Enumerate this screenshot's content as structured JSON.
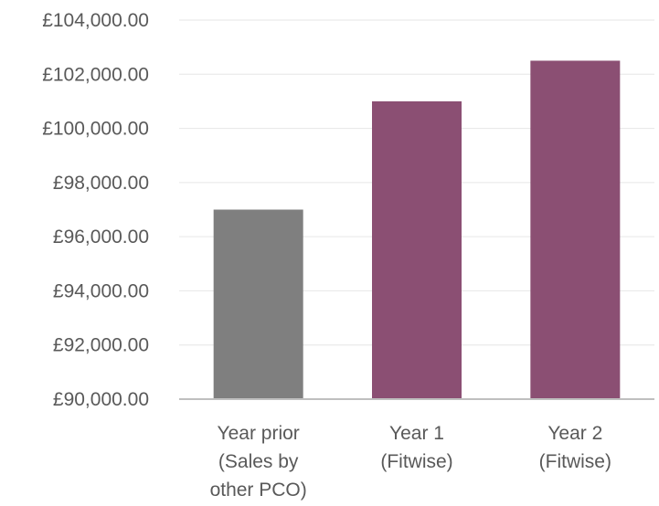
{
  "chart_data": {
    "type": "bar",
    "categories": [
      [
        "Year prior",
        "(Sales by",
        "other PCO)"
      ],
      [
        "Year 1",
        "(Fitwise)"
      ],
      [
        "Year 2",
        "(Fitwise)"
      ]
    ],
    "values": [
      97000,
      101000,
      102500
    ],
    "bar_colors": [
      "#7f7f7f",
      "#8b4f73",
      "#8b4f73"
    ],
    "ylim": [
      90000,
      104000
    ],
    "y_ticks": [
      {
        "value": 90000,
        "label": "£90,000.00"
      },
      {
        "value": 92000,
        "label": "£92,000.00"
      },
      {
        "value": 94000,
        "label": "£94,000.00"
      },
      {
        "value": 96000,
        "label": "£96,000.00"
      },
      {
        "value": 98000,
        "label": "£98,000.00"
      },
      {
        "value": 100000,
        "label": "£100,000.00"
      },
      {
        "value": 102000,
        "label": "£102,000.00"
      },
      {
        "value": 104000,
        "label": "£104,000.00"
      }
    ],
    "grid": true,
    "legend": "none"
  }
}
